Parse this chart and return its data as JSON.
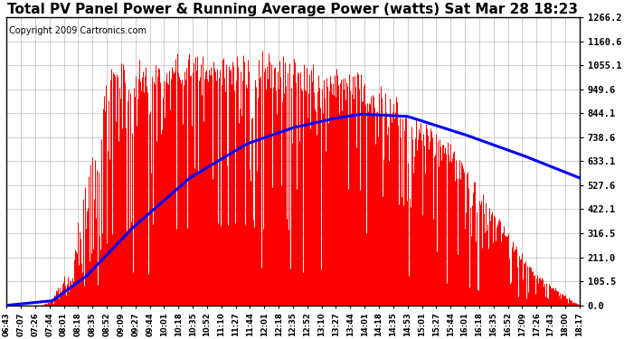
{
  "title": "Total PV Panel Power & Running Average Power (watts) Sat Mar 28 18:23",
  "copyright": "Copyright 2009 Cartronics.com",
  "y_max": 1266.2,
  "y_min": 0.0,
  "y_ticks": [
    0.0,
    105.5,
    211.0,
    316.5,
    422.1,
    527.6,
    633.1,
    738.6,
    844.1,
    949.6,
    1055.1,
    1160.6,
    1266.2
  ],
  "x_labels": [
    "06:43",
    "07:07",
    "07:26",
    "07:44",
    "08:01",
    "08:18",
    "08:35",
    "08:52",
    "09:09",
    "09:27",
    "09:44",
    "10:01",
    "10:18",
    "10:35",
    "10:52",
    "11:10",
    "11:27",
    "11:44",
    "12:01",
    "12:18",
    "12:35",
    "12:52",
    "13:10",
    "13:27",
    "13:44",
    "14:01",
    "14:18",
    "14:35",
    "14:53",
    "15:01",
    "15:27",
    "15:44",
    "16:01",
    "16:18",
    "16:35",
    "16:52",
    "17:09",
    "17:26",
    "17:43",
    "18:00",
    "18:17"
  ],
  "background_color": "#ffffff",
  "bar_color": "#ff0000",
  "line_color": "#0000ff",
  "grid_color": "#aaaaaa",
  "title_fontsize": 11,
  "copyright_fontsize": 7,
  "avg_points_x": [
    0.0,
    0.08,
    0.14,
    0.22,
    0.32,
    0.42,
    0.5,
    0.57,
    0.62,
    0.7,
    0.8,
    0.9,
    1.0
  ],
  "avg_points_y": [
    0.0,
    20,
    130,
    340,
    560,
    710,
    780,
    820,
    840,
    830,
    750,
    660,
    560
  ]
}
